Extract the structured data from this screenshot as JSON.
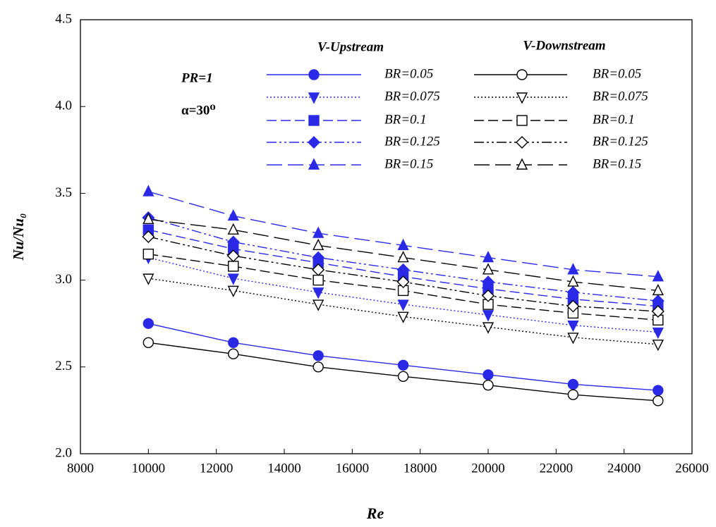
{
  "chart_data": {
    "type": "line",
    "x_label": "Re",
    "y_label": "Nu/Nu₀",
    "annotations": [
      "PR=1",
      "α=30⁰"
    ],
    "legend_titles": [
      "V-Upstream",
      "V-Downstream"
    ],
    "x": [
      10000,
      12500,
      15000,
      17500,
      20000,
      22500,
      25000
    ],
    "xlim": [
      8000,
      26000
    ],
    "xticks": [
      8000,
      10000,
      12000,
      14000,
      16000,
      18000,
      20000,
      22000,
      24000,
      26000
    ],
    "ylim": [
      2.0,
      4.5
    ],
    "yticks": [
      {
        "value": 2.0,
        "label": "2.0"
      },
      {
        "value": 2.5,
        "label": "2.5"
      },
      {
        "value": 3.0,
        "label": "3.0"
      },
      {
        "value": 3.5,
        "label": "3.5"
      },
      {
        "value": 4.0,
        "label": "4.0"
      },
      {
        "value": 4.5,
        "label": "4.5"
      }
    ],
    "series": [
      {
        "name": "BR=0.05",
        "color": "#2a2ae6",
        "marker": "circle",
        "filled": true,
        "dash": "solid",
        "values": [
          2.75,
          2.64,
          2.565,
          2.51,
          2.455,
          2.4,
          2.365
        ]
      },
      {
        "name": "BR=0.075",
        "color": "#2a2ae6",
        "marker": "triangle-down",
        "filled": true,
        "dash": "dotted",
        "values": [
          3.13,
          3.01,
          2.93,
          2.86,
          2.8,
          2.74,
          2.7
        ]
      },
      {
        "name": "BR=0.1",
        "color": "#2a2ae6",
        "marker": "square",
        "filled": true,
        "dash": "dashed",
        "values": [
          3.29,
          3.18,
          3.1,
          3.02,
          2.95,
          2.89,
          2.85
        ]
      },
      {
        "name": "BR=0.125",
        "color": "#2a2ae6",
        "marker": "diamond",
        "filled": true,
        "dash": "dashdotdot",
        "values": [
          3.36,
          3.22,
          3.13,
          3.06,
          2.99,
          2.93,
          2.88
        ]
      },
      {
        "name": "BR=0.15",
        "color": "#2a2ae6",
        "marker": "triangle-up",
        "filled": true,
        "dash": "longdash",
        "values": [
          3.51,
          3.37,
          3.27,
          3.2,
          3.13,
          3.06,
          3.02
        ]
      },
      {
        "name": "BR=0.05",
        "color": "#000000",
        "marker": "circle",
        "filled": false,
        "dash": "solid",
        "values": [
          2.64,
          2.575,
          2.5,
          2.445,
          2.395,
          2.34,
          2.305
        ]
      },
      {
        "name": "BR=0.075",
        "color": "#000000",
        "marker": "triangle-down",
        "filled": false,
        "dash": "dotted",
        "values": [
          3.01,
          2.94,
          2.86,
          2.79,
          2.73,
          2.67,
          2.63
        ]
      },
      {
        "name": "BR=0.1",
        "color": "#000000",
        "marker": "square",
        "filled": false,
        "dash": "dashed",
        "values": [
          3.15,
          3.08,
          3.0,
          2.94,
          2.86,
          2.81,
          2.77
        ]
      },
      {
        "name": "BR=0.125",
        "color": "#000000",
        "marker": "diamond",
        "filled": false,
        "dash": "dashdotdot",
        "values": [
          3.25,
          3.14,
          3.06,
          2.99,
          2.91,
          2.85,
          2.82
        ]
      },
      {
        "name": "BR=0.15",
        "color": "#000000",
        "marker": "triangle-up",
        "filled": false,
        "dash": "longdash",
        "values": [
          3.35,
          3.29,
          3.2,
          3.13,
          3.06,
          2.99,
          2.94
        ]
      }
    ]
  }
}
